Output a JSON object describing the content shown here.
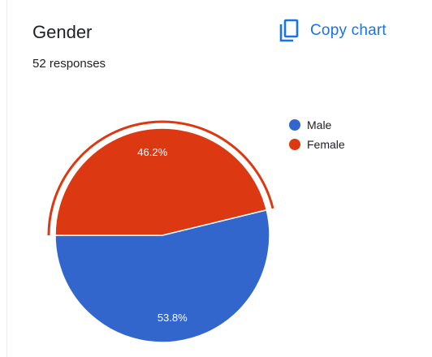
{
  "card": {
    "title": "Gender",
    "responses_label": "52 responses",
    "copy_label": "Copy chart"
  },
  "colors": {
    "accent": "#1a73e8",
    "male": "#3366cc",
    "female": "#dc3912"
  },
  "chart_data": {
    "type": "pie",
    "categories": [
      "Male",
      "Female"
    ],
    "values": [
      53.8,
      46.2
    ],
    "value_labels": [
      "53.8%",
      "46.2%"
    ],
    "colors": [
      "#3366cc",
      "#dc3912"
    ],
    "highlighted_slice": "Female",
    "legend_position": "top-right"
  }
}
